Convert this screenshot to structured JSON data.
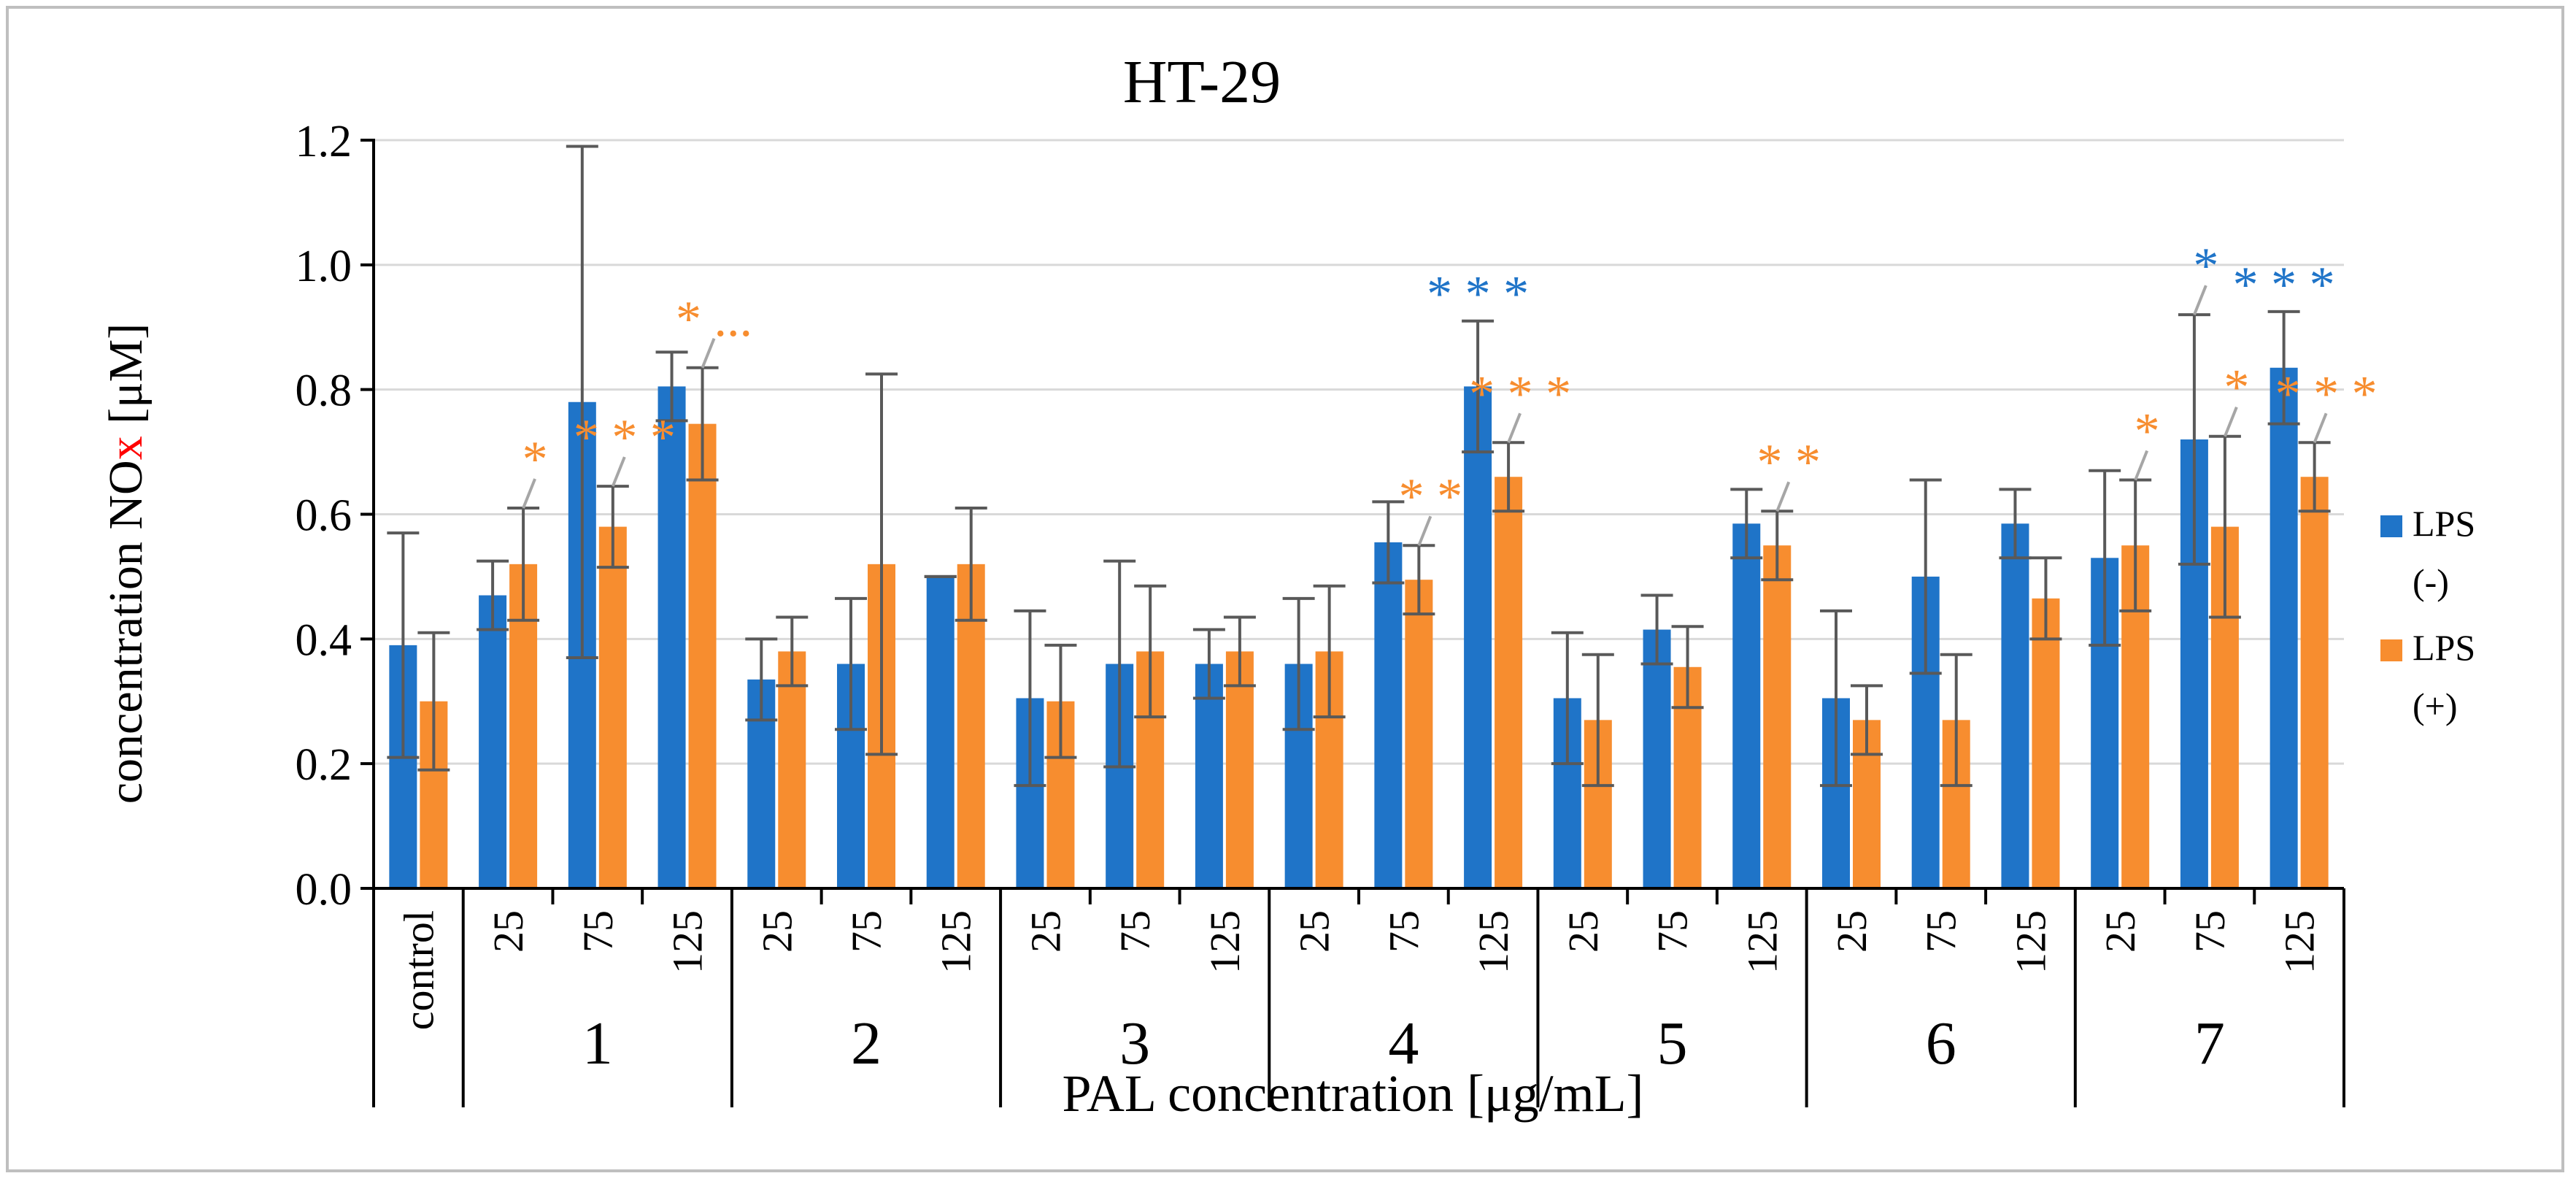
{
  "chart_data": {
    "type": "bar",
    "title": "HT-29",
    "xlabel": "PAL concentration [μg/mL]",
    "ylabel_parts": [
      "concentration NO",
      "x",
      " [μM]"
    ],
    "ylim": [
      0,
      1.2
    ],
    "yticks": [
      "0.0",
      "0.2",
      "0.4",
      "0.6",
      "0.8",
      "1.0",
      "1.2"
    ],
    "grid": true,
    "legend_position": "right",
    "categories": [
      "control",
      "25",
      "75",
      "125",
      "25",
      "75",
      "125",
      "25",
      "75",
      "125",
      "25",
      "75",
      "125",
      "25",
      "75",
      "125",
      "25",
      "75",
      "125",
      "25",
      "75",
      "125"
    ],
    "groups": [
      {
        "label": "1",
        "from": 1,
        "to": 3
      },
      {
        "label": "2",
        "from": 4,
        "to": 6
      },
      {
        "label": "3",
        "from": 7,
        "to": 9
      },
      {
        "label": "4",
        "from": 10,
        "to": 12
      },
      {
        "label": "5",
        "from": 13,
        "to": 15
      },
      {
        "label": "6",
        "from": 16,
        "to": 18
      },
      {
        "label": "7",
        "from": 19,
        "to": 21
      }
    ],
    "series": [
      {
        "name": "LPS (-)",
        "legend_lines": [
          "LPS",
          "(-)"
        ],
        "color": "#1f74c8",
        "values": [
          0.39,
          0.47,
          0.78,
          0.805,
          0.335,
          0.36,
          0.5,
          0.305,
          0.36,
          0.36,
          0.36,
          0.555,
          0.805,
          0.305,
          0.415,
          0.585,
          0.305,
          0.5,
          0.585,
          0.53,
          0.72,
          0.835
        ],
        "errors": [
          0.18,
          0.055,
          0.41,
          0.055,
          0.065,
          0.105,
          0.0,
          0.14,
          0.165,
          0.055,
          0.105,
          0.065,
          0.105,
          0.105,
          0.055,
          0.055,
          0.14,
          0.155,
          0.055,
          0.14,
          0.2,
          0.09
        ]
      },
      {
        "name": "LPS (+)",
        "legend_lines": [
          "LPS",
          "(+)"
        ],
        "color": "#f78d2f",
        "values": [
          0.3,
          0.52,
          0.58,
          0.745,
          0.38,
          0.52,
          0.52,
          0.3,
          0.38,
          0.38,
          0.38,
          0.495,
          0.66,
          0.27,
          0.355,
          0.55,
          0.27,
          0.27,
          0.465,
          0.55,
          0.58,
          0.66
        ],
        "errors": [
          0.11,
          0.09,
          0.065,
          0.09,
          0.055,
          0.305,
          0.09,
          0.09,
          0.105,
          0.055,
          0.105,
          0.055,
          0.055,
          0.105,
          0.065,
          0.055,
          0.055,
          0.105,
          0.065,
          0.105,
          0.145,
          0.055
        ]
      }
    ],
    "annotations": [
      {
        "text": "*",
        "color": "orange",
        "index": 1,
        "series": 1,
        "leader": true
      },
      {
        "text": "* * *",
        "color": "orange",
        "index": 2,
        "series": 1,
        "leader": true
      },
      {
        "text": "* ...",
        "color": "orange",
        "index": 3,
        "series": 1,
        "leader": true
      },
      {
        "text": "* *",
        "color": "orange",
        "index": 11,
        "series": 1,
        "leader": true
      },
      {
        "text": "* * *",
        "color": "blue",
        "index": 12,
        "series": 0,
        "leader": false
      },
      {
        "text": "* * *",
        "color": "orange",
        "index": 12,
        "series": 1,
        "leader": true
      },
      {
        "text": "* *",
        "color": "orange",
        "index": 15,
        "series": 1,
        "leader": true
      },
      {
        "text": "*",
        "color": "orange",
        "index": 19,
        "series": 1,
        "leader": true
      },
      {
        "text": "*",
        "color": "blue",
        "index": 20,
        "series": 0,
        "leader": true
      },
      {
        "text": "*",
        "color": "orange",
        "index": 20,
        "series": 1,
        "leader": true
      },
      {
        "text": "* * *",
        "color": "blue",
        "index": 21,
        "series": 0,
        "leader": false
      },
      {
        "text": "* * *",
        "color": "orange",
        "index": 21,
        "series": 1,
        "leader": true
      }
    ]
  }
}
